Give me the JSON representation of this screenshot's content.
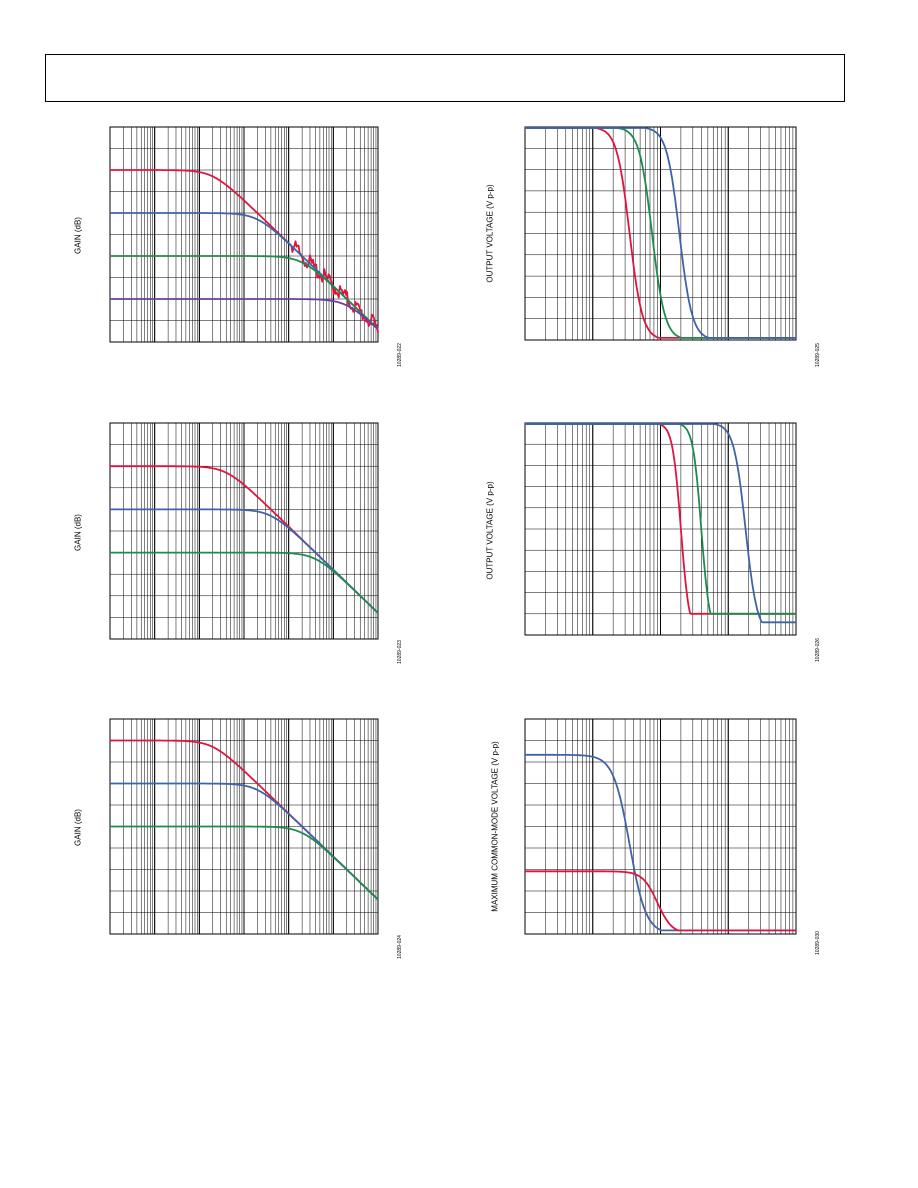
{
  "colors": {
    "red": "#e0153e",
    "blue": "#3f63a8",
    "green": "#1e8b4e",
    "purple": "#6a3fa0",
    "grid": "#000000"
  },
  "chart_data": [
    {
      "id": "c1",
      "type": "line",
      "figure_id": "10289-022",
      "xlabel": "",
      "ylabel": "GAIN (dB)",
      "xscale": "log",
      "xlim": [
        1,
        1000000
      ],
      "ylim": [
        -50,
        50
      ],
      "grid": true,
      "series": [
        {
          "color_key": "red",
          "dc_db": 30,
          "corner": 200,
          "slope_db_per_decade": -20,
          "floor_db": -50,
          "noise": 1
        },
        {
          "color_key": "blue",
          "dc_db": 10,
          "corner": 2000,
          "slope_db_per_decade": -20,
          "floor_db": -50,
          "noise": 0
        },
        {
          "color_key": "green",
          "dc_db": -10,
          "corner": 20000,
          "slope_db_per_decade": -20,
          "floor_db": -50,
          "noise": 0
        },
        {
          "color_key": "purple",
          "dc_db": -30,
          "corner": 200000,
          "slope_db_per_decade": -20,
          "floor_db": -50,
          "noise": 0
        }
      ]
    },
    {
      "id": "c2",
      "type": "line",
      "figure_id": "10289-023",
      "xlabel": "",
      "ylabel": "GAIN (dB)",
      "xscale": "log",
      "xlim": [
        1,
        1000000
      ],
      "ylim": [
        -50,
        50
      ],
      "grid": true,
      "series": [
        {
          "color_key": "red",
          "dc_db": 30,
          "corner": 400,
          "slope_db_per_decade": -20,
          "floor_db": -60,
          "noise": 0
        },
        {
          "color_key": "blue",
          "dc_db": 10,
          "corner": 4000,
          "slope_db_per_decade": -20,
          "floor_db": -60,
          "noise": 0
        },
        {
          "color_key": "green",
          "dc_db": -10,
          "corner": 40000,
          "slope_db_per_decade": -20,
          "floor_db": -60,
          "noise": 0
        }
      ]
    },
    {
      "id": "c3",
      "type": "line",
      "figure_id": "10289-024",
      "xlabel": "",
      "ylabel": "GAIN (dB)",
      "xscale": "log",
      "xlim": [
        1,
        1000000
      ],
      "ylim": [
        -50,
        50
      ],
      "grid": true,
      "series": [
        {
          "color_key": "red",
          "dc_db": 40,
          "corner": 200,
          "slope_db_per_decade": -20,
          "floor_db": -60,
          "noise": 0
        },
        {
          "color_key": "blue",
          "dc_db": 20,
          "corner": 2000,
          "slope_db_per_decade": -20,
          "floor_db": -60,
          "noise": 0
        },
        {
          "color_key": "green",
          "dc_db": 0,
          "corner": 20000,
          "slope_db_per_decade": -20,
          "floor_db": -60,
          "noise": 0
        }
      ]
    },
    {
      "id": "c4",
      "type": "line",
      "figure_id": "10289-025",
      "xlabel": "",
      "ylabel": "OUTPUT VOLTAGE (V p-p)",
      "xscale": "log",
      "xlim": [
        1000,
        10000000
      ],
      "ylim": [
        0,
        5
      ],
      "grid": true,
      "series": [
        {
          "color_key": "red",
          "flat_v": 5,
          "knee": 35000,
          "steepness": 2.3,
          "floor_v": 0.05
        },
        {
          "color_key": "green",
          "flat_v": 5,
          "knee": 75000,
          "steepness": 2.3,
          "floor_v": 0.05
        },
        {
          "color_key": "blue",
          "flat_v": 5,
          "knee": 190000,
          "steepness": 2.3,
          "floor_v": 0.05
        }
      ]
    },
    {
      "id": "c5",
      "type": "line",
      "figure_id": "10289-026",
      "xlabel": "",
      "ylabel": "OUTPUT VOLTAGE (V p-p)",
      "xscale": "log",
      "xlim": [
        1000,
        10000000
      ],
      "ylim": [
        0,
        5
      ],
      "grid": true,
      "series": [
        {
          "color_key": "red",
          "flat_v": 5,
          "knee": 200000,
          "steepness": 3.5,
          "floor_v": 0.5
        },
        {
          "color_key": "green",
          "flat_v": 5,
          "knee": 400000,
          "steepness": 3.5,
          "floor_v": 0.5
        },
        {
          "color_key": "blue",
          "flat_v": 5,
          "knee": 1800000,
          "steepness": 2.5,
          "floor_v": 0.3
        }
      ]
    },
    {
      "id": "c6",
      "type": "line",
      "figure_id": "10289-030",
      "xlabel": "",
      "ylabel": "MAXIMUM COMMON-MODE VOLTAGE (V p-p)",
      "xscale": "log",
      "xlim": [
        1000,
        10000000
      ],
      "ylim": [
        0,
        12
      ],
      "grid": true,
      "series": [
        {
          "color_key": "blue",
          "flat_v": 10,
          "knee": 35000,
          "steepness": 1.8,
          "floor_v": 0.2
        },
        {
          "color_key": "red",
          "flat_v": 3.5,
          "knee": 90000,
          "steepness": 2.0,
          "floor_v": 0.2
        }
      ]
    }
  ]
}
